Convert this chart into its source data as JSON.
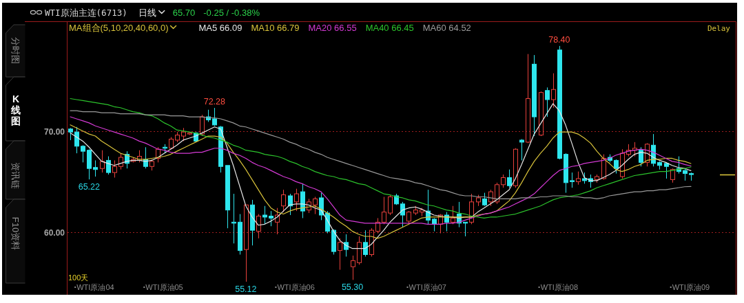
{
  "chart_data": {
    "type": "candlestick",
    "title": "WTI原油主连(6713)",
    "legend_title": "MA组合(5,10,20,40,60,0)",
    "legend": "top left",
    "grid": "y",
    "ylim": [
      53.9,
      80.9
    ],
    "yticks": [
      {
        "value": 70,
        "label": "70.00"
      },
      {
        "value": 60,
        "label": "60.00"
      }
    ],
    "categories": [
      null,
      null,
      null,
      null,
      "WTI原油04",
      null,
      null,
      null,
      null,
      null,
      null,
      null,
      null,
      null,
      null,
      "WTI原油05",
      null,
      null,
      null,
      null,
      null,
      null,
      null,
      null,
      null,
      null,
      null,
      null,
      null,
      null,
      null,
      null,
      null,
      null,
      null,
      null,
      "WTI原油06",
      null,
      null,
      null,
      null,
      null,
      null,
      null,
      null,
      null,
      null,
      null,
      null,
      null,
      null,
      null,
      null,
      null,
      null,
      null,
      null,
      "WTI原油07",
      null,
      null,
      null,
      null,
      null,
      null,
      null,
      null,
      null,
      null,
      null,
      null,
      null,
      null,
      null,
      null,
      null,
      null,
      null,
      null,
      "WTI原油08",
      null,
      null,
      null,
      null,
      null,
      null,
      null,
      null,
      null,
      null,
      null,
      null,
      null,
      null,
      null,
      null,
      null,
      null,
      null,
      null,
      "WTI原油09"
    ],
    "ohlc": [
      [
        70.2,
        70.3,
        69.1,
        69.9
      ],
      [
        69.9,
        70.4,
        67.8,
        68.5
      ],
      [
        68.5,
        68.6,
        66.9,
        68.0
      ],
      [
        68.1,
        68.2,
        65.22,
        66.3
      ],
      [
        66.4,
        67.1,
        65.5,
        66.2
      ],
      [
        66.3,
        68.1,
        65.9,
        67.0
      ],
      [
        67.1,
        67.5,
        65.7,
        65.9
      ],
      [
        65.9,
        67.1,
        65.4,
        66.5
      ],
      [
        66.5,
        67.8,
        66.2,
        67.4
      ],
      [
        67.7,
        68.0,
        66.3,
        66.8
      ],
      [
        67.0,
        67.4,
        66.9,
        67.2
      ],
      [
        67.1,
        68.1,
        66.9,
        67.5
      ],
      [
        67.2,
        68.4,
        66.3,
        66.5
      ],
      [
        66.5,
        67.2,
        66.1,
        67.0
      ],
      [
        67.3,
        68.4,
        66.9,
        68.2
      ],
      [
        68.4,
        68.7,
        67.8,
        68.3
      ],
      [
        68.3,
        69.4,
        68.2,
        69.2
      ],
      [
        69.1,
        69.9,
        68.9,
        69.6
      ],
      [
        69.5,
        70.3,
        69.0,
        69.9
      ],
      [
        69.7,
        69.9,
        69.6,
        69.8
      ],
      [
        69.8,
        69.9,
        68.9,
        69.0
      ],
      [
        69.7,
        71.6,
        69.5,
        71.4
      ],
      [
        71.4,
        72.1,
        70.9,
        71.1
      ],
      [
        71.2,
        72.28,
        70.5,
        70.6
      ],
      [
        70.4,
        70.5,
        65.9,
        66.5
      ],
      [
        66.6,
        66.6,
        60.4,
        62.2
      ],
      [
        61.0,
        63.8,
        58.9,
        60.9
      ],
      [
        61.0,
        61.8,
        57.8,
        58.2
      ],
      [
        58.3,
        62.7,
        55.12,
        62.7
      ],
      [
        62.7,
        63.2,
        58.7,
        60.2
      ],
      [
        60.1,
        61.8,
        59.4,
        61.6
      ],
      [
        61.7,
        62.6,
        60.8,
        61.5
      ],
      [
        61.6,
        62.1,
        60.6,
        61.4
      ],
      [
        61.0,
        62.4,
        59.8,
        61.7
      ],
      [
        62.6,
        64.2,
        62.0,
        63.7
      ],
      [
        63.6,
        63.8,
        61.7,
        62.6
      ],
      [
        63.0,
        64.3,
        62.1,
        63.8
      ],
      [
        64.0,
        64.8,
        61.4,
        62.1
      ],
      [
        62.2,
        63.3,
        61.9,
        63.0
      ],
      [
        62.7,
        63.5,
        61.8,
        63.3
      ],
      [
        63.4,
        63.9,
        61.2,
        61.7
      ],
      [
        61.9,
        62.1,
        59.9,
        60.1
      ],
      [
        60.2,
        60.3,
        57.8,
        58.1
      ],
      [
        58.2,
        59.4,
        56.3,
        59.0
      ],
      [
        59.0,
        59.8,
        57.6,
        58.3
      ],
      [
        56.6,
        57.7,
        55.3,
        57.2
      ],
      [
        57.0,
        59.6,
        56.8,
        59.0
      ],
      [
        59.0,
        60.2,
        57.6,
        57.8
      ],
      [
        57.8,
        60.4,
        57.6,
        60.2
      ],
      [
        60.1,
        61.4,
        59.9,
        61.0
      ],
      [
        61.0,
        63.5,
        60.8,
        62.0
      ],
      [
        61.9,
        63.7,
        61.7,
        63.5
      ],
      [
        63.6,
        63.8,
        62.7,
        62.8
      ],
      [
        62.8,
        63.0,
        60.5,
        61.7
      ],
      [
        61.1,
        62.1,
        60.8,
        62.0
      ],
      [
        61.9,
        62.6,
        61.7,
        62.2
      ],
      [
        62.0,
        62.4,
        61.6,
        62.2
      ],
      [
        62.1,
        64.2,
        60.8,
        61.2
      ],
      [
        61.3,
        61.4,
        60.1,
        60.8
      ],
      [
        60.8,
        61.8,
        59.9,
        61.7
      ],
      [
        61.7,
        62.0,
        60.1,
        61.0
      ],
      [
        61.0,
        62.6,
        60.8,
        61.4
      ],
      [
        61.8,
        63.0,
        60.5,
        60.9
      ],
      [
        61.0,
        61.0,
        59.6,
        60.9
      ],
      [
        61.0,
        63.8,
        60.8,
        63.0
      ],
      [
        63.0,
        63.7,
        62.6,
        63.4
      ],
      [
        63.3,
        63.9,
        62.6,
        62.7
      ],
      [
        63.0,
        64.2,
        62.6,
        64.0
      ],
      [
        63.0,
        64.9,
        62.8,
        64.7
      ],
      [
        64.7,
        65.7,
        64.4,
        65.4
      ],
      [
        65.4,
        66.2,
        64.4,
        64.6
      ],
      [
        64.6,
        68.3,
        64.4,
        68.2
      ],
      [
        69.1,
        69.2,
        67.1,
        68.9
      ],
      [
        68.9,
        77.6,
        68.8,
        73.2
      ],
      [
        76.6,
        77.5,
        69.5,
        71.4
      ],
      [
        69.6,
        73.9,
        69.5,
        73.8
      ],
      [
        74.0,
        74.3,
        71.4,
        73.1
      ],
      [
        73.1,
        75.7,
        72.3,
        74.1
      ],
      [
        78.0,
        78.4,
        67.2,
        67.3
      ],
      [
        67.7,
        67.8,
        63.9,
        64.9
      ],
      [
        65.1,
        65.9,
        64.4,
        65.0
      ],
      [
        65.0,
        66.0,
        64.7,
        65.3
      ],
      [
        65.3,
        65.9,
        64.8,
        65.1
      ],
      [
        65.3,
        65.7,
        64.4,
        65.0
      ],
      [
        65.2,
        65.7,
        64.9,
        65.5
      ],
      [
        65.3,
        67.7,
        65.2,
        67.3
      ],
      [
        67.4,
        67.7,
        66.9,
        67.1
      ],
      [
        67.1,
        67.2,
        65.8,
        66.3
      ],
      [
        65.5,
        68.2,
        65.3,
        67.8
      ],
      [
        67.7,
        68.7,
        67.5,
        68.1
      ],
      [
        68.1,
        68.9,
        67.5,
        68.3
      ],
      [
        68.1,
        68.4,
        66.5,
        66.9
      ],
      [
        66.9,
        68.8,
        66.5,
        68.7
      ],
      [
        68.6,
        69.7,
        66.5,
        66.8
      ],
      [
        66.9,
        67.0,
        66.2,
        66.6
      ],
      [
        66.8,
        66.9,
        65.3,
        66.5
      ],
      [
        65.2,
        66.3,
        64.9,
        66.2
      ],
      [
        66.3,
        67.5,
        65.8,
        66.0
      ],
      [
        66.1,
        66.3,
        65.1,
        65.8
      ],
      [
        65.8,
        65.9,
        65.1,
        65.7
      ]
    ],
    "colors": [
      "#2ee6ee",
      "#2ee6ee",
      "#2ee6ee",
      "#2ee6ee",
      "#2ee6ee",
      "#e8413c",
      "#2ee6ee",
      "#e8413c",
      "#e8413c",
      "#2ee6ee",
      "#e8413c",
      "#e8413c",
      "#2ee6ee",
      "#e8413c",
      "#e8413c",
      "#2ee6ee",
      "#e8413c",
      "#e8413c",
      "#e8413c",
      "#e8413c",
      "#2ee6ee",
      "#e8413c",
      "#2ee6ee",
      "#2ee6ee",
      "#2ee6ee",
      "#2ee6ee",
      "#2ee6ee",
      "#2ee6ee",
      "#e8413c",
      "#2ee6ee",
      "#e8413c",
      "#2ee6ee",
      "#2ee6ee",
      "#e8413c",
      "#e8413c",
      "#2ee6ee",
      "#e8413c",
      "#2ee6ee",
      "#e8413c",
      "#e8413c",
      "#2ee6ee",
      "#2ee6ee",
      "#2ee6ee",
      "#e8413c",
      "#2ee6ee",
      "#e8413c",
      "#e8413c",
      "#2ee6ee",
      "#e8413c",
      "#e8413c",
      "#e8413c",
      "#e8413c",
      "#2ee6ee",
      "#2ee6ee",
      "#e8413c",
      "#e8413c",
      "#e8413c",
      "#2ee6ee",
      "#2ee6ee",
      "#e8413c",
      "#2ee6ee",
      "#e8413c",
      "#2ee6ee",
      "#2ee6ee",
      "#e8413c",
      "#e8413c",
      "#2ee6ee",
      "#e8413c",
      "#e8413c",
      "#e8413c",
      "#2ee6ee",
      "#e8413c",
      "#2ee6ee",
      "#e8413c",
      "#2ee6ee",
      "#e8413c",
      "#2ee6ee",
      "#e8413c",
      "#2ee6ee",
      "#2ee6ee",
      "#2ee6ee",
      "#e8413c",
      "#2ee6ee",
      "#2ee6ee",
      "#e8413c",
      "#e8413c",
      "#2ee6ee",
      "#2ee6ee",
      "#e8413c",
      "#e8413c",
      "#e8413c",
      "#2ee6ee",
      "#e8413c",
      "#2ee6ee",
      "#2ee6ee",
      "#2ee6ee",
      "#e8413c",
      "#2ee6ee",
      "#2ee6ee",
      "#2ee6ee"
    ],
    "value_labels": [
      null,
      null,
      null,
      "65.22",
      null,
      null,
      null,
      null,
      null,
      null,
      null,
      null,
      null,
      null,
      null,
      null,
      null,
      null,
      null,
      null,
      null,
      null,
      null,
      "72.28",
      null,
      null,
      null,
      null,
      "55.12",
      null,
      null,
      null,
      null,
      null,
      null,
      null,
      null,
      null,
      null,
      null,
      null,
      null,
      null,
      null,
      null,
      "55.30",
      null,
      null,
      null,
      null,
      null,
      null,
      null,
      null,
      null,
      null,
      null,
      null,
      null,
      null,
      null,
      null,
      null,
      null,
      null,
      null,
      null,
      null,
      null,
      null,
      null,
      null,
      null,
      null,
      null,
      null,
      null,
      null,
      "78.40",
      null,
      null,
      null,
      null,
      null,
      null,
      null,
      null,
      null,
      null,
      null,
      null,
      null,
      null,
      null,
      null,
      null,
      null,
      null,
      null,
      null
    ],
    "series": [
      {
        "name": "MA5 66.09",
        "type": "line",
        "color": "#e6e6e6",
        "values": [
          69.8,
          69.4,
          69.0,
          68.4,
          67.7,
          67.0,
          66.8,
          66.6,
          66.8,
          67.0,
          67.1,
          67.1,
          67.0,
          67.1,
          67.4,
          67.8,
          68.2,
          68.6,
          69.1,
          69.3,
          69.5,
          69.8,
          70.1,
          70.4,
          70.2,
          68.4,
          66.6,
          64.6,
          62.6,
          61.5,
          60.7,
          60.8,
          61.1,
          61.5,
          62.1,
          62.7,
          62.8,
          62.8,
          62.7,
          62.4,
          62.2,
          61.2,
          60.1,
          59.2,
          58.7,
          58.4,
          58.4,
          58.4,
          58.8,
          59.5,
          60.2,
          61.0,
          61.6,
          62.2,
          62.4,
          62.5,
          62.3,
          62.0,
          61.7,
          61.6,
          61.5,
          61.5,
          61.4,
          61.5,
          61.5,
          62.0,
          62.4,
          62.8,
          63.2,
          63.7,
          64.2,
          65.3,
          66.7,
          68.2,
          69.7,
          70.7,
          71.7,
          72.7,
          72.0,
          70.6,
          68.8,
          66.9,
          65.4,
          65.1,
          65.1,
          65.4,
          65.7,
          66.1,
          66.6,
          67.2,
          67.7,
          67.9,
          67.8,
          67.4,
          67.1,
          66.9,
          66.6,
          66.4,
          66.3,
          66.09
        ]
      },
      {
        "name": "MA10 66.79",
        "type": "line",
        "color": "#d8c23a",
        "values": [
          70.6,
          70.3,
          70.0,
          69.7,
          69.5,
          69.0,
          68.6,
          68.2,
          67.8,
          67.6,
          67.4,
          67.2,
          67.2,
          67.3,
          67.4,
          67.5,
          67.7,
          68.0,
          68.3,
          68.6,
          68.9,
          69.2,
          69.5,
          69.5,
          69.4,
          68.8,
          67.9,
          67.1,
          66.2,
          65.2,
          64.2,
          63.2,
          62.4,
          62.0,
          61.8,
          62.1,
          62.3,
          62.4,
          62.5,
          62.6,
          62.3,
          61.9,
          61.5,
          61.0,
          60.6,
          60.1,
          59.8,
          59.6,
          59.6,
          59.4,
          59.6,
          59.9,
          60.2,
          60.5,
          60.8,
          61.1,
          61.4,
          61.5,
          61.5,
          61.5,
          61.5,
          61.5,
          61.5,
          61.5,
          61.5,
          61.7,
          61.8,
          61.9,
          62.1,
          62.6,
          63.1,
          63.9,
          64.9,
          66.0,
          67.0,
          67.8,
          68.5,
          69.3,
          69.9,
          69.9,
          69.9,
          69.7,
          69.3,
          68.8,
          68.0,
          67.3,
          66.8,
          66.2,
          66.0,
          66.2,
          66.5,
          66.7,
          67.1,
          67.2,
          67.2,
          67.3,
          67.3,
          67.1,
          67.0,
          66.79
        ]
      },
      {
        "name": "MA20 66.55",
        "type": "line",
        "color": "#d43ad4",
        "values": [
          71.4,
          71.2,
          71.0,
          70.8,
          70.5,
          70.3,
          70.1,
          69.9,
          69.7,
          69.5,
          69.3,
          69.0,
          68.8,
          68.5,
          68.2,
          68.1,
          67.9,
          67.8,
          67.8,
          67.8,
          67.9,
          67.9,
          68.1,
          68.3,
          68.3,
          68.1,
          67.8,
          67.6,
          67.3,
          66.9,
          66.6,
          66.4,
          66.1,
          65.8,
          65.5,
          65.3,
          65.0,
          64.8,
          64.5,
          64.3,
          64.0,
          63.3,
          62.5,
          61.7,
          61.2,
          61.1,
          61.0,
          60.9,
          60.9,
          60.9,
          60.9,
          60.9,
          60.9,
          60.9,
          60.9,
          60.9,
          60.9,
          60.8,
          60.8,
          60.8,
          60.9,
          60.9,
          61.0,
          61.2,
          61.4,
          61.6,
          61.8,
          61.9,
          62.1,
          62.3,
          62.5,
          62.8,
          63.1,
          63.4,
          63.8,
          64.4,
          65.0,
          65.6,
          66.1,
          66.3,
          66.5,
          66.6,
          66.8,
          66.9,
          67.0,
          67.1,
          67.3,
          67.6,
          67.8,
          68.0,
          68.1,
          68.2,
          68.1,
          67.9,
          67.6,
          67.3,
          67.0,
          66.9,
          66.7,
          66.55
        ]
      },
      {
        "name": "MA40 66.45",
        "type": "line",
        "color": "#2cc42c",
        "values": [
          73.2,
          73.1,
          73.0,
          72.9,
          72.8,
          72.7,
          72.6,
          72.4,
          72.3,
          72.1,
          71.9,
          71.8,
          71.6,
          71.5,
          71.2,
          70.8,
          70.5,
          70.1,
          70.0,
          69.9,
          69.8,
          69.6,
          69.4,
          69.3,
          69.1,
          68.9,
          68.6,
          68.4,
          68.1,
          68.0,
          67.9,
          67.7,
          67.6,
          67.5,
          67.3,
          67.0,
          66.8,
          66.5,
          66.3,
          66.0,
          65.8,
          65.6,
          65.5,
          65.3,
          65.2,
          65.0,
          64.8,
          64.7,
          64.4,
          64.1,
          63.8,
          63.7,
          63.5,
          63.4,
          63.2,
          63.1,
          62.9,
          62.7,
          62.6,
          62.4,
          62.2,
          62.1,
          61.9,
          61.8,
          61.6,
          61.5,
          61.4,
          61.5,
          61.5,
          61.6,
          61.7,
          61.8,
          62.0,
          62.2,
          62.4,
          62.6,
          62.9,
          63.2,
          63.4,
          63.5,
          63.6,
          63.7,
          63.9,
          64.1,
          64.4,
          64.6,
          64.8,
          65.0,
          65.2,
          65.4,
          65.6,
          65.7,
          65.8,
          65.9,
          66.0,
          66.0,
          66.1,
          66.2,
          66.3,
          66.45
        ]
      },
      {
        "name": "MA60 64.52",
        "type": "line",
        "color": "#9a9a9a",
        "values": [
          72.0,
          72.0,
          71.9,
          71.9,
          71.9,
          71.8,
          71.8,
          71.8,
          71.7,
          71.7,
          71.7,
          71.7,
          71.6,
          71.6,
          71.6,
          71.6,
          71.5,
          71.5,
          71.5,
          71.4,
          71.4,
          71.4,
          71.3,
          71.3,
          71.2,
          71.0,
          70.8,
          70.5,
          70.4,
          70.2,
          70.0,
          69.8,
          69.6,
          69.4,
          69.2,
          68.9,
          68.7,
          68.4,
          68.2,
          67.9,
          67.7,
          67.4,
          67.2,
          67.0,
          66.8,
          66.6,
          66.4,
          66.2,
          66.0,
          65.8,
          65.6,
          65.4,
          65.3,
          65.2,
          65.1,
          64.9,
          64.8,
          64.6,
          64.4,
          64.2,
          64.1,
          63.9,
          63.7,
          63.6,
          63.6,
          63.5,
          63.5,
          63.4,
          63.3,
          63.3,
          63.3,
          63.3,
          63.4,
          63.4,
          63.4,
          63.5,
          63.5,
          63.6,
          63.6,
          63.6,
          63.5,
          63.5,
          63.4,
          63.4,
          63.3,
          63.4,
          63.6,
          63.7,
          63.8,
          63.9,
          64.0,
          64.0,
          64.1,
          64.1,
          64.2,
          64.2,
          64.3,
          64.4,
          64.5,
          64.52
        ]
      }
    ],
    "annotations": [
      "日线",
      "65.70",
      "-0.25 / -0.38%",
      "Delay",
      "100天",
      "分时图",
      "K线图",
      "资讯链",
      "F10资料"
    ]
  }
}
